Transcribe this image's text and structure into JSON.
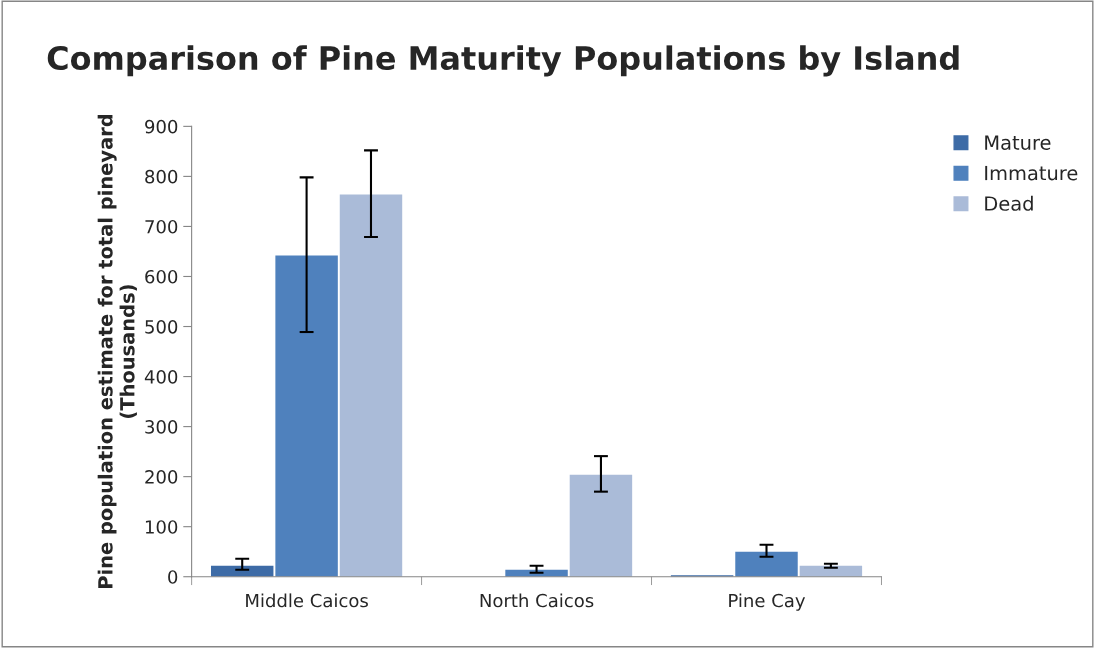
{
  "chart_data": {
    "type": "bar",
    "title": "Comparison of Pine Maturity Populations by Island",
    "ylabel": "Pine population estimate for total pineyard (Thousands)",
    "categories": [
      "Middle Caicos",
      "North Caicos",
      "Pine Cay"
    ],
    "series": [
      {
        "name": "Mature",
        "color": "#3d6ba6",
        "values": [
          22,
          null,
          3
        ],
        "errors": [
          [
            14,
            36
          ],
          null,
          null
        ]
      },
      {
        "name": "Immature",
        "color": "#4f81bd",
        "values": [
          642,
          14,
          50
        ],
        "errors": [
          [
            489,
            798
          ],
          [
            8,
            22
          ],
          [
            40,
            64
          ]
        ]
      },
      {
        "name": "Dead",
        "color": "#aabbd8",
        "values": [
          764,
          204,
          22
        ],
        "errors": [
          [
            679,
            852
          ],
          [
            170,
            241
          ],
          [
            18,
            26
          ]
        ]
      }
    ],
    "ylim": [
      0,
      900
    ],
    "yticks": [
      0,
      100,
      200,
      300,
      400,
      500,
      600,
      700,
      800,
      900
    ],
    "grid": false,
    "legend": "top right"
  }
}
